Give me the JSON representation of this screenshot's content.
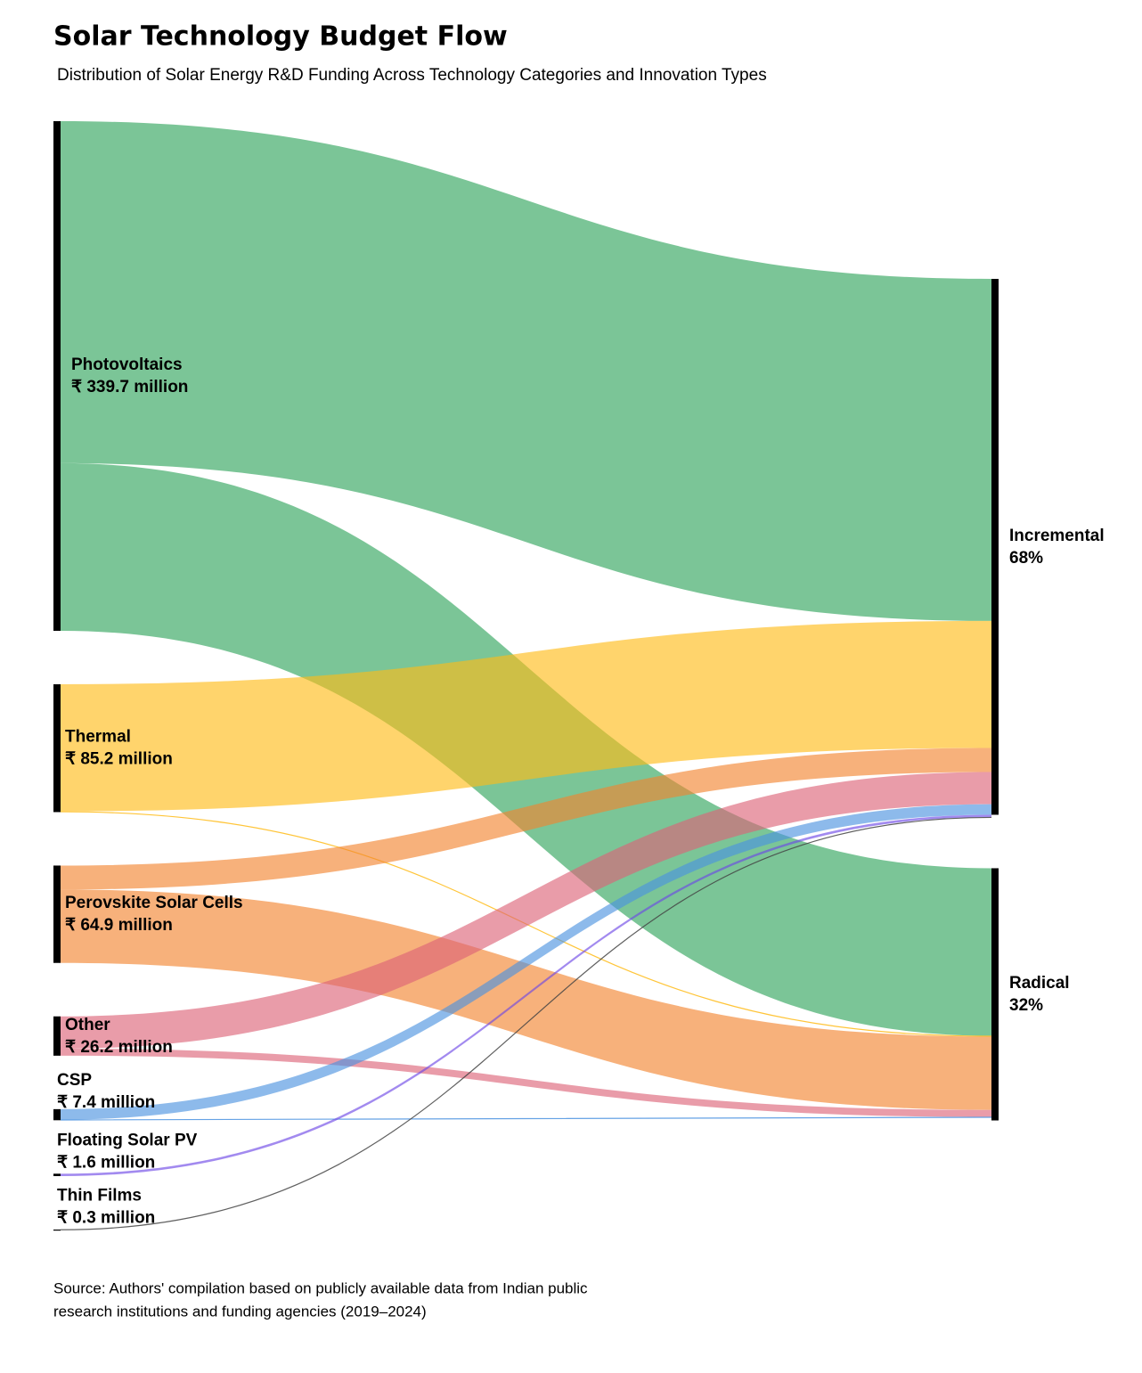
{
  "chart_data": {
    "type": "sankey",
    "title": "Solar Technology Budget Flow",
    "subtitle": "Distribution of Solar Energy R&D Funding Across Technology Categories and Innovation Types",
    "source_note": [
      "Source: Authors' compilation based on publicly available data from Indian public",
      "research institutions and funding agencies (2019–2024)"
    ],
    "sources": [
      {
        "name": "Photovoltaics",
        "value": 339.7,
        "value_label": "₹ 339.7 million",
        "color": "#2ea35a"
      },
      {
        "name": "Thermal",
        "value": 85.2,
        "value_label": "₹ 85.2 million",
        "color": "#ffbb16"
      },
      {
        "name": "Perovskite Solar Cells",
        "value": 64.9,
        "value_label": "₹ 64.9 million",
        "color": "#f2832e"
      },
      {
        "name": "Other",
        "value": 26.2,
        "value_label": "₹ 26.2 million",
        "color": "#dc6277"
      },
      {
        "name": "CSP",
        "value": 7.4,
        "value_label": "₹ 7.4 million",
        "color": "#4a92e0"
      },
      {
        "name": "Floating Solar PV",
        "value": 1.6,
        "value_label": "₹ 1.6 million",
        "color": "#6b46e6"
      },
      {
        "name": "Thin Films",
        "value": 0.3,
        "value_label": "₹ 0.3 million",
        "color": "#444444"
      }
    ],
    "targets": [
      {
        "name": "Incremental",
        "value": 68,
        "value_label": "68%"
      },
      {
        "name": "Radical",
        "value": 32,
        "value_label": "32%"
      }
    ],
    "links": [
      {
        "source": "Photovoltaics",
        "target": "Incremental",
        "value": 228
      },
      {
        "source": "Photovoltaics",
        "target": "Radical",
        "value": 111.7
      },
      {
        "source": "Thermal",
        "target": "Incremental",
        "value": 84.7
      },
      {
        "source": "Thermal",
        "target": "Radical",
        "value": 0.5
      },
      {
        "source": "Perovskite Solar Cells",
        "target": "Incremental",
        "value": 16
      },
      {
        "source": "Perovskite Solar Cells",
        "target": "Radical",
        "value": 48.9
      },
      {
        "source": "Other",
        "target": "Incremental",
        "value": 21.5
      },
      {
        "source": "Other",
        "target": "Radical",
        "value": 4.7
      },
      {
        "source": "CSP",
        "target": "Incremental",
        "value": 7
      },
      {
        "source": "CSP",
        "target": "Radical",
        "value": 0.4
      },
      {
        "source": "Floating Solar PV",
        "target": "Incremental",
        "value": 1.6
      },
      {
        "source": "Thin Films",
        "target": "Incremental",
        "value": 0.3
      }
    ]
  }
}
